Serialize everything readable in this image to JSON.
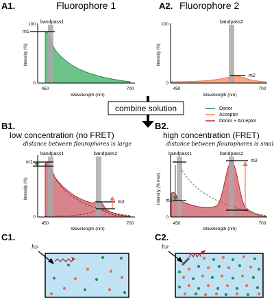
{
  "panels": {
    "a1": {
      "label": "A1.",
      "title": "Fluorophore 1",
      "band": "bandpass1",
      "marker": "m1"
    },
    "a2": {
      "label": "A2.",
      "title": "Fluorophore 2",
      "band": "bandpass2",
      "marker": "m2"
    },
    "b1": {
      "label": "B1.",
      "title": "low concentration (no FRET)",
      "subtitle": "distance between flourophores is large",
      "band1": "bandpass1",
      "band2": "bandpass2",
      "marker1": "m1",
      "marker2": "m2"
    },
    "b2": {
      "label": "B2.",
      "title": "high concentration (FRET)",
      "subtitle": "distance between flourophores is small",
      "band1": "bandpass1",
      "band2": "bandpass2",
      "marker1": "m1",
      "marker2": "m2"
    },
    "c1": {
      "label": "C1.",
      "hv": "hν"
    },
    "c2": {
      "label": "C2.",
      "hv": "hν"
    }
  },
  "axes": {
    "ylabel": "Intensity (%)",
    "ylabel_max": "Intensity (% max)",
    "xlabel": "Wavelength (nm)",
    "x_min": "450",
    "x_max": "700",
    "y_max": "100",
    "y_min": "0"
  },
  "center": {
    "combine": "combine solution"
  },
  "legend": [
    {
      "label": "Donor",
      "color": "#2e8b3f"
    },
    {
      "label": "Acceptor",
      "color": "#f07a52"
    },
    {
      "label": "Donor + Acceptor",
      "color": "#b02a30"
    }
  ],
  "colors": {
    "donor_fill": "#6cc48a",
    "acceptor_fill": "#f5a889",
    "sum_fill": "#d9848c",
    "band": "#a9a9a9",
    "box_fill": "#bfe3f5",
    "donor_dot": "#2e8b57",
    "acceptor_dot": "#e0704f"
  }
}
